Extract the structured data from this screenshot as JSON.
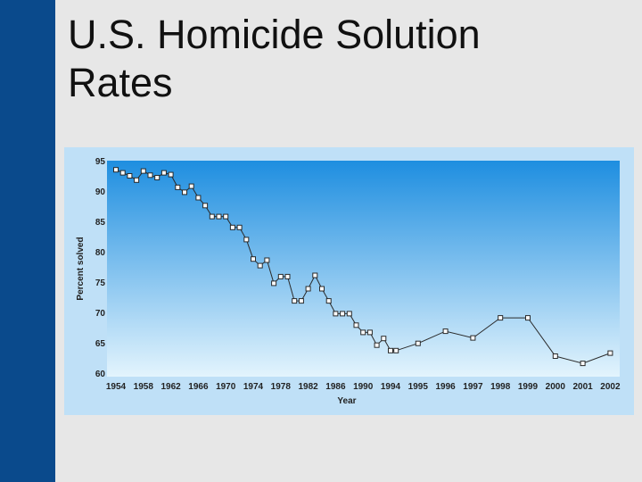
{
  "slide": {
    "title_line1": "U.S. Homicide Solution",
    "title_line2": "Rates"
  },
  "colors": {
    "left_bar": "#0a4a8c",
    "frame": "#bfe0f7",
    "plot_top": "#1e8ee0",
    "plot_bottom": "#e3f4fd",
    "line": "#2a2a2a",
    "marker_fill": "#ffffff",
    "axis_text": "#222222"
  },
  "chart_data": {
    "type": "line",
    "xlabel": "Year",
    "ylabel": "Percent solved",
    "ylim": [
      60,
      95
    ],
    "yticks": [
      95,
      90,
      85,
      80,
      75,
      70,
      65,
      60
    ],
    "xtick_labels": [
      "1954",
      "1958",
      "1962",
      "1966",
      "1970",
      "1974",
      "1978",
      "1982",
      "1986",
      "1990",
      "1994",
      "1995",
      "1996",
      "1997",
      "1998",
      "1999",
      "2000",
      "2001",
      "2002"
    ],
    "grid": false,
    "legend": "none",
    "points": [
      {
        "x": 0,
        "y": 93.5
      },
      {
        "x": 0.25,
        "y": 93
      },
      {
        "x": 0.5,
        "y": 92.5
      },
      {
        "x": 0.75,
        "y": 91.8
      },
      {
        "x": 1,
        "y": 93.3
      },
      {
        "x": 1.25,
        "y": 92.6
      },
      {
        "x": 1.5,
        "y": 92.2
      },
      {
        "x": 1.75,
        "y": 93
      },
      {
        "x": 2,
        "y": 92.7
      },
      {
        "x": 2.25,
        "y": 90.6
      },
      {
        "x": 2.5,
        "y": 89.8
      },
      {
        "x": 2.75,
        "y": 90.8
      },
      {
        "x": 3,
        "y": 88.9
      },
      {
        "x": 3.25,
        "y": 87.6
      },
      {
        "x": 3.5,
        "y": 85.8
      },
      {
        "x": 3.75,
        "y": 85.8
      },
      {
        "x": 4,
        "y": 85.8
      },
      {
        "x": 4.25,
        "y": 84
      },
      {
        "x": 4.5,
        "y": 84
      },
      {
        "x": 4.75,
        "y": 82
      },
      {
        "x": 5,
        "y": 78.8
      },
      {
        "x": 5.25,
        "y": 77.7
      },
      {
        "x": 5.5,
        "y": 78.6
      },
      {
        "x": 5.75,
        "y": 74.8
      },
      {
        "x": 6,
        "y": 75.9
      },
      {
        "x": 6.25,
        "y": 75.9
      },
      {
        "x": 6.5,
        "y": 71.9
      },
      {
        "x": 6.75,
        "y": 71.9
      },
      {
        "x": 7,
        "y": 73.9
      },
      {
        "x": 7.25,
        "y": 76.1
      },
      {
        "x": 7.5,
        "y": 73.9
      },
      {
        "x": 7.75,
        "y": 71.9
      },
      {
        "x": 8,
        "y": 69.8
      },
      {
        "x": 8.25,
        "y": 69.8
      },
      {
        "x": 8.5,
        "y": 69.8
      },
      {
        "x": 8.75,
        "y": 67.9
      },
      {
        "x": 9,
        "y": 66.7
      },
      {
        "x": 9.25,
        "y": 66.7
      },
      {
        "x": 9.5,
        "y": 64.6
      },
      {
        "x": 9.75,
        "y": 65.7
      },
      {
        "x": 10,
        "y": 63.7
      },
      {
        "x": 10.2,
        "y": 63.7
      },
      {
        "x": 11,
        "y": 64.9
      },
      {
        "x": 12,
        "y": 66.9
      },
      {
        "x": 13,
        "y": 65.8
      },
      {
        "x": 14,
        "y": 69.1
      },
      {
        "x": 15,
        "y": 69.1
      },
      {
        "x": 16,
        "y": 62.8
      },
      {
        "x": 17,
        "y": 61.6
      },
      {
        "x": 18,
        "y": 63.3
      }
    ]
  }
}
